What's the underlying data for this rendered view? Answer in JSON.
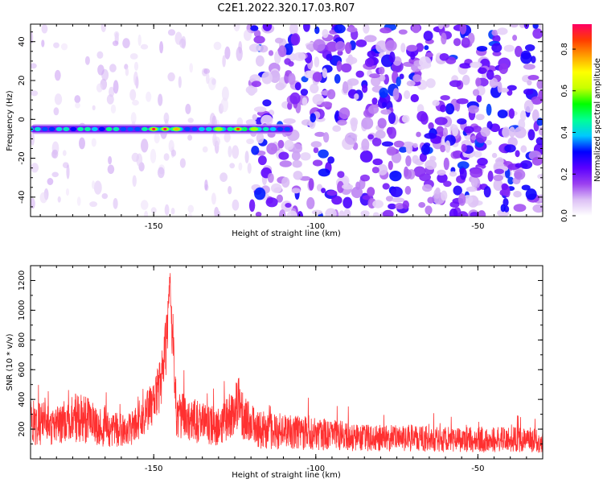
{
  "figure_title": "C2E1.2022.320.17.03.R07",
  "chart_data": [
    {
      "type": "heatmap",
      "title": "C2E1.2022.320.17.03.R07",
      "xlabel": "Height of straight line (km)",
      "ylabel": "Frequency (Hz)",
      "xlim": [
        -188,
        -30
      ],
      "ylim": [
        -50,
        49
      ],
      "x_ticks": [
        -150,
        -100,
        -50
      ],
      "y_ticks": [
        -40,
        -20,
        0,
        20,
        40
      ],
      "colorbar": {
        "label": "Normalized spectral amplitude",
        "range": [
          0.0,
          0.92
        ],
        "ticks": [
          0.0,
          0.2,
          0.4,
          0.6,
          0.8
        ],
        "colormap": [
          "#ffffff",
          "#dcc0f5",
          "#9b40f0",
          "#5a00ff",
          "#0000ff",
          "#00c8ff",
          "#00ff96",
          "#00ff00",
          "#c8ff00",
          "#ffff00",
          "#ffa000",
          "#ff3c00",
          "#ff0064"
        ]
      },
      "features": {
        "signal_band": {
          "frequency_hz": -5,
          "x_start": -188,
          "x_end": -107,
          "hotspots": [
            {
              "x": -150,
              "value": 0.9
            },
            {
              "x": -146.5,
              "value": 0.92
            },
            {
              "x": -143,
              "value": 0.75
            },
            {
              "x": -130,
              "value": 0.6
            },
            {
              "x": -124,
              "value": 0.85
            },
            {
              "x": -119,
              "value": 0.6
            }
          ]
        },
        "noise_onset_x": -120
      }
    },
    {
      "type": "line",
      "xlabel": "Height of straight line (km)",
      "ylabel": "SNR (10 * v/v)",
      "xlim": [
        -188,
        -30
      ],
      "ylim": [
        0,
        1300
      ],
      "x_ticks": [
        -150,
        -100,
        -50
      ],
      "y_ticks": [
        200,
        400,
        600,
        800,
        1000,
        1200
      ],
      "series": [
        {
          "color": "#ff3030",
          "envelope": {
            "x": [
              -188,
              -180,
              -173,
              -165,
              -158,
              -154,
              -150,
              -148,
              -146,
              -145,
              -144,
              -143,
              -141,
              -138,
              -135,
              -130,
              -126,
              -124,
              -122,
              -118,
              -110,
              -100,
              -90,
              -80,
              -70,
              -60,
              -50,
              -40,
              -30
            ],
            "mean": [
              250,
              220,
              290,
              200,
              190,
              250,
              380,
              500,
              780,
              1200,
              700,
              320,
              280,
              260,
              240,
              220,
              300,
              380,
              270,
              200,
              180,
              170,
              150,
              140,
              140,
              130,
              130,
              130,
              120
            ],
            "spread": [
              160,
              130,
              180,
              120,
              110,
              130,
              150,
              180,
              220,
              100,
              200,
              180,
              160,
              150,
              140,
              130,
              160,
              200,
              150,
              130,
              120,
              110,
              100,
              90,
              90,
              85,
              85,
              85,
              80
            ]
          }
        }
      ]
    }
  ]
}
